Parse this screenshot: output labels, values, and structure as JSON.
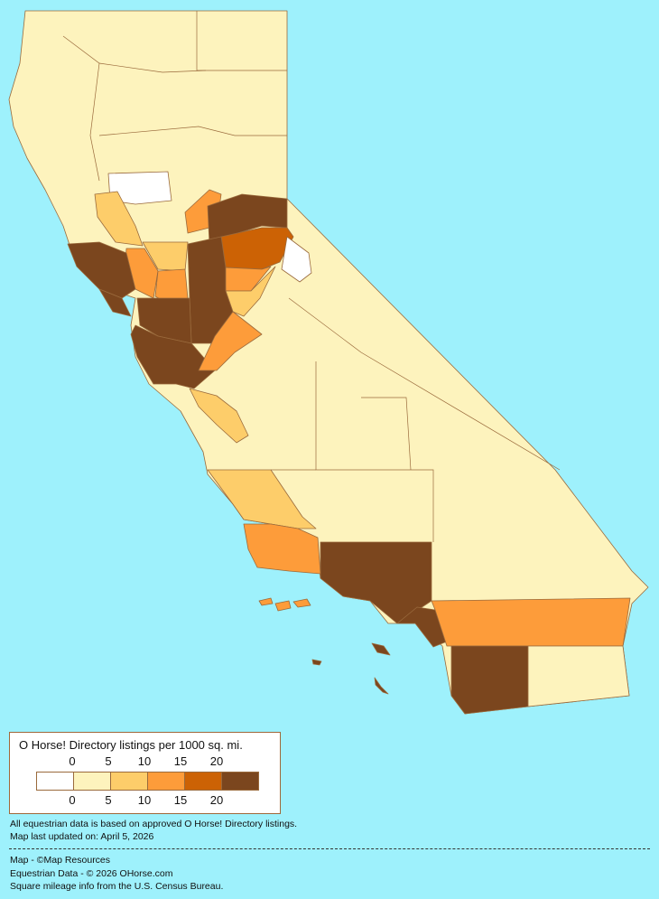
{
  "legend": {
    "title": "O Horse! Directory listings per 1000 sq. mi.",
    "ticks": [
      "0",
      "5",
      "10",
      "15",
      "20"
    ],
    "bins": [
      {
        "range": "0",
        "color": "#ffffff"
      },
      {
        "range": "0-5",
        "color": "#fdf3bd"
      },
      {
        "range": "5-10",
        "color": "#fdcd6a"
      },
      {
        "range": "10-15",
        "color": "#fd9c3a"
      },
      {
        "range": "15-20",
        "color": "#cc6205"
      },
      {
        "range": "20+",
        "color": "#7b461e"
      }
    ]
  },
  "colors": {
    "background": "#9ef1fc",
    "border": "#9a6a3c"
  },
  "notes": {
    "data_basis": "All equestrian data is based on approved O Horse! Directory listings.",
    "updated": "Map last updated on: April 5, 2026"
  },
  "credits": {
    "map": "Map - ©Map Resources",
    "data": "Equestrian Data - © 2026 OHorse.com",
    "mileage": "Square mileage info from the U.S. Census Bureau."
  }
}
